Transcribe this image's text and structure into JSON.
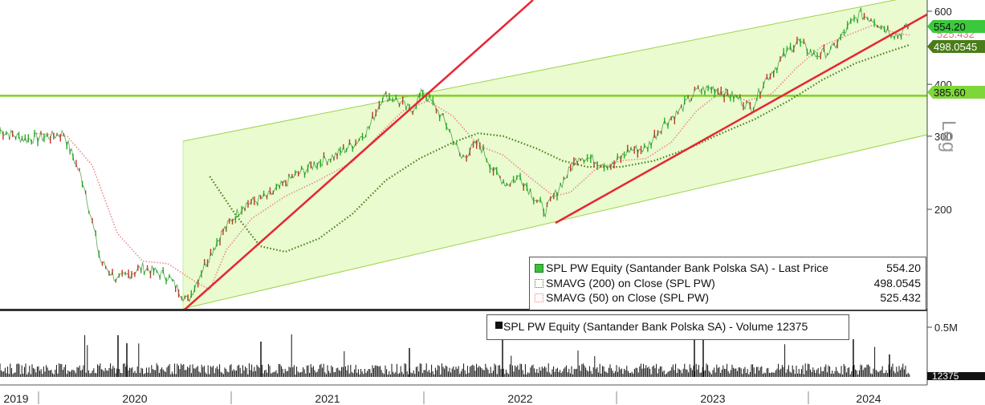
{
  "chart_data": {
    "type": "line",
    "scale": "log",
    "y_axis_label": "Log",
    "y_ticks": [
      200,
      300,
      400,
      600
    ],
    "volume_ticks": [
      "0.5M"
    ],
    "x_ticks": [
      "2019",
      "2020",
      "2021",
      "2022",
      "2023",
      "2024"
    ],
    "series": [
      {
        "name": "SPL PW Equity (Santander Bank Polska SA) - Last Price",
        "last_value": "554.20",
        "color": "#21b21e"
      },
      {
        "name": "SMAVG (200)  on Close (SPL PW)",
        "last_value": "498.0545",
        "color": "#4a7d18"
      },
      {
        "name": "SMAVG (50)  on Close (SPL PW)",
        "last_value": "525.432",
        "color": "#e87a7a"
      }
    ],
    "volume_series": {
      "name": "SPL PW Equity (Santander Bank Polska SA) - Volume",
      "last_value": "12375"
    },
    "price_path": [
      [
        2019.6,
        310
      ],
      [
        2019.75,
        295
      ],
      [
        2019.9,
        300
      ],
      [
        2019.98,
        305
      ],
      [
        2020.1,
        230
      ],
      [
        2020.2,
        150
      ],
      [
        2020.3,
        135
      ],
      [
        2020.45,
        145
      ],
      [
        2020.6,
        138
      ],
      [
        2020.72,
        120
      ],
      [
        2020.8,
        142
      ],
      [
        2020.92,
        175
      ],
      [
        2021.05,
        205
      ],
      [
        2021.2,
        215
      ],
      [
        2021.35,
        240
      ],
      [
        2021.5,
        260
      ],
      [
        2021.6,
        270
      ],
      [
        2021.72,
        290
      ],
      [
        2021.8,
        315
      ],
      [
        2021.88,
        375
      ],
      [
        2021.95,
        370
      ],
      [
        2022.05,
        345
      ],
      [
        2022.12,
        385
      ],
      [
        2022.2,
        350
      ],
      [
        2022.27,
        315
      ],
      [
        2022.35,
        265
      ],
      [
        2022.45,
        290
      ],
      [
        2022.55,
        245
      ],
      [
        2022.62,
        230
      ],
      [
        2022.7,
        240
      ],
      [
        2022.78,
        215
      ],
      [
        2022.85,
        198
      ],
      [
        2022.95,
        232
      ],
      [
        2023.05,
        270
      ],
      [
        2023.15,
        262
      ],
      [
        2023.25,
        255
      ],
      [
        2023.35,
        278
      ],
      [
        2023.45,
        280
      ],
      [
        2023.55,
        320
      ],
      [
        2023.65,
        345
      ],
      [
        2023.75,
        385
      ],
      [
        2023.85,
        392
      ],
      [
        2024.0,
        370
      ],
      [
        2024.08,
        350
      ],
      [
        2024.15,
        405
      ],
      [
        2024.25,
        455
      ],
      [
        2024.35,
        510
      ],
      [
        2024.45,
        470
      ],
      [
        2024.55,
        480
      ],
      [
        2024.65,
        545
      ],
      [
        2024.72,
        590
      ],
      [
        2024.8,
        575
      ],
      [
        2024.88,
        545
      ],
      [
        2024.95,
        525
      ],
      [
        2025.02,
        554.2
      ]
    ],
    "sma200_path": [
      [
        2020.85,
        240
      ],
      [
        2021.0,
        195
      ],
      [
        2021.15,
        163
      ],
      [
        2021.3,
        158
      ],
      [
        2021.5,
        170
      ],
      [
        2021.7,
        195
      ],
      [
        2021.9,
        235
      ],
      [
        2022.1,
        265
      ],
      [
        2022.3,
        290
      ],
      [
        2022.45,
        305
      ],
      [
        2022.6,
        300
      ],
      [
        2022.8,
        280
      ],
      [
        2022.95,
        262
      ],
      [
        2023.1,
        253
      ],
      [
        2023.3,
        253
      ],
      [
        2023.5,
        262
      ],
      [
        2023.7,
        280
      ],
      [
        2023.9,
        305
      ],
      [
        2024.1,
        330
      ],
      [
        2024.3,
        365
      ],
      [
        2024.5,
        410
      ],
      [
        2024.7,
        450
      ],
      [
        2024.9,
        480
      ],
      [
        2025.02,
        498.0545
      ]
    ],
    "sma50_path": [
      [
        2019.8,
        305
      ],
      [
        2020.0,
        300
      ],
      [
        2020.15,
        255
      ],
      [
        2020.3,
        175
      ],
      [
        2020.45,
        150
      ],
      [
        2020.6,
        148
      ],
      [
        2020.75,
        135
      ],
      [
        2020.85,
        128
      ],
      [
        2020.95,
        160
      ],
      [
        2021.1,
        190
      ],
      [
        2021.3,
        215
      ],
      [
        2021.5,
        235
      ],
      [
        2021.7,
        260
      ],
      [
        2021.85,
        300
      ],
      [
        2022.0,
        345
      ],
      [
        2022.15,
        365
      ],
      [
        2022.3,
        335
      ],
      [
        2022.45,
        285
      ],
      [
        2022.6,
        270
      ],
      [
        2022.75,
        240
      ],
      [
        2022.9,
        215
      ],
      [
        2023.0,
        220
      ],
      [
        2023.15,
        250
      ],
      [
        2023.3,
        262
      ],
      [
        2023.45,
        265
      ],
      [
        2023.6,
        290
      ],
      [
        2023.75,
        345
      ],
      [
        2023.9,
        385
      ],
      [
        2024.05,
        365
      ],
      [
        2024.2,
        380
      ],
      [
        2024.35,
        440
      ],
      [
        2024.5,
        495
      ],
      [
        2024.65,
        525
      ],
      [
        2024.8,
        555
      ],
      [
        2024.95,
        530
      ],
      [
        2025.02,
        525.432
      ]
    ],
    "annotations": {
      "horizontal_level": "385.60",
      "labels": [
        {
          "text": "554.20",
          "color": "#3cc83c"
        },
        {
          "text": "498.0545",
          "color": "#4a7d18"
        },
        {
          "text": "385.60",
          "color": "#7fd63a"
        }
      ],
      "hidden_label": "525.432"
    }
  }
}
